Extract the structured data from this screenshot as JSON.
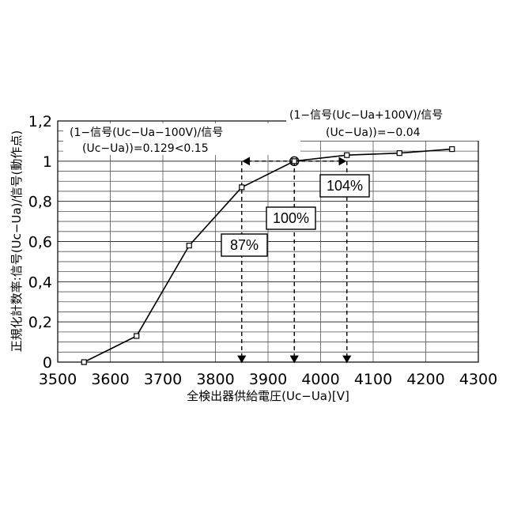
{
  "chart_data": {
    "type": "line",
    "xlabel": "全検出器供給電圧(Uc−Ua)[V]",
    "ylabel": "正規化計数率:信号(Uc−Ua)/信号(動作点)",
    "xlim": [
      3500,
      4300
    ],
    "ylim": [
      0,
      1.2
    ],
    "x_ticks": [
      "3500",
      "3600",
      "3700",
      "3800",
      "3900",
      "4000",
      "4100",
      "4200",
      "4300"
    ],
    "y_ticks": [
      "0",
      "0,2",
      "0,4",
      "0,6",
      "0,8",
      "1",
      "1,2"
    ],
    "grid": true,
    "x": [
      3550,
      3650,
      3750,
      3850,
      3950,
      4050,
      4150,
      4250
    ],
    "y": [
      0.0,
      0.13,
      0.58,
      0.87,
      1.0,
      1.03,
      1.04,
      1.06
    ],
    "operating_point": {
      "x": 3950,
      "y": 1.0
    },
    "markers": [
      {
        "x": 3850,
        "label": "87%"
      },
      {
        "x": 3950,
        "label": "100%"
      },
      {
        "x": 4050,
        "label": "104%"
      }
    ],
    "annotation_left": {
      "line1": "(1−信号(Uc−Ua−100V)/信号",
      "line2": "(Uc−Ua))=0.129<0.15"
    },
    "annotation_right": {
      "line1": "(1−信号(Uc−Ua+100V)/信号",
      "line2": "(Uc−Ua))=−0.04"
    }
  }
}
